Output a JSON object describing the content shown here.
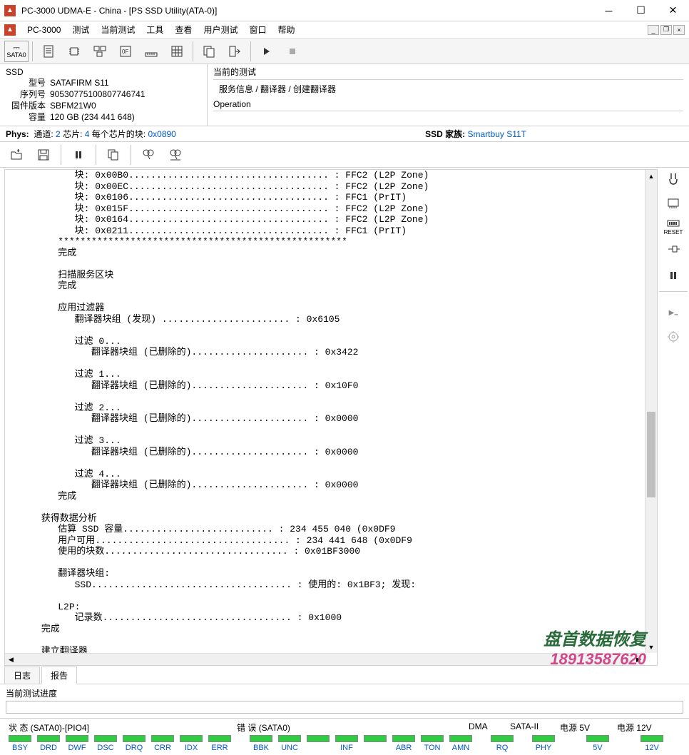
{
  "window": {
    "title": "PC-3000 UDMA-E - China - [PS SSD Utility(ATA-0)]"
  },
  "menu": {
    "items": [
      "PC-3000",
      "测试",
      "当前测试",
      "工具",
      "查看",
      "用户测试",
      "窗口",
      "帮助"
    ]
  },
  "sata_label": "SATA0",
  "ssd_panel": {
    "header": "SSD",
    "rows": [
      {
        "k": "型号",
        "v": "SATAFIRM   S11"
      },
      {
        "k": "序列号",
        "v": "90530775100807746741"
      },
      {
        "k": "固件版本",
        "v": "SBFM21W0"
      },
      {
        "k": "容量",
        "v": "120 GB (234 441 648)"
      }
    ]
  },
  "op_panel": {
    "current_test_label": "当前的测试",
    "crumbs": "服务信息 / 翻译器 / 创建翻译器",
    "operation_label": "Operation"
  },
  "phys": {
    "label": "Phys:",
    "channels_label": "通道:",
    "channels": "2",
    "chips_label": "芯片:",
    "chips": "4",
    "blocks_label": "每个芯片的块:",
    "blocks": "0x0890",
    "ssd_family_label": "SSD 家族:",
    "ssd_family": "Smartbuy S11T"
  },
  "log_text": "            块: 0x00B0.................................... : FFC2 (L2P Zone)\n            块: 0x00EC.................................... : FFC2 (L2P Zone)\n            块: 0x0106.................................... : FFC1 (PrIT)\n            块: 0x015F.................................... : FFC2 (L2P Zone)\n            块: 0x0164.................................... : FFC2 (L2P Zone)\n            块: 0x0211.................................... : FFC1 (PrIT)\n         ****************************************************\n         完成\n\n         扫描服务区块\n         完成\n\n         应用过滤器\n            翻译器块组 (发现) ....................... : 0x6105\n\n            过滤 0...\n               翻译器块组 (已删除的)..................... : 0x3422\n\n            过滤 1...\n               翻译器块组 (已删除的)..................... : 0x10F0\n\n            过滤 2...\n               翻译器块组 (已删除的)..................... : 0x0000\n\n            过滤 3...\n               翻译器块组 (已删除的)..................... : 0x0000\n\n            过滤 4...\n               翻译器块组 (已删除的)..................... : 0x0000\n         完成\n\n      获得数据分析\n         估算 SSD 容量........................... : 234 455 040 (0x0DF9\n         用户可用................................... : 234 441 648 (0x0DF9\n         使用的块数................................. : 0x01BF3000\n\n         翻译器块组:\n            SSD.................................... : 使用的: 0x1BF3; 发现:\n\n         L2P:\n            记录数.................................. : 0x1000\n      完成\n\n      建立翻译器\n      完成\n   ****************************************************\n   完成\n****************************************************\n测试完成",
  "side_tools": {
    "reset_label": "RESET"
  },
  "tabs": {
    "log": "日志",
    "report": "报告"
  },
  "progress": {
    "label": "当前测试进度"
  },
  "status": {
    "group1_label": "状 态 (SATA0)-[PIO4]",
    "group2_label": "错 误 (SATA0)",
    "dma_label": "DMA",
    "sata2_label": "SATA-II",
    "power5_label": "电源 5V",
    "power12_label": "电源 12V",
    "leds1": [
      "BSY",
      "DRD",
      "DWF",
      "DSC",
      "DRQ",
      "CRR",
      "IDX",
      "ERR"
    ],
    "leds2": [
      "BBK",
      "UNC",
      "",
      "INF",
      "",
      "ABR",
      "TON",
      "AMN"
    ],
    "rq": "RQ",
    "phy": "PHY",
    "v5": "5V",
    "v12": "12V"
  },
  "watermark": {
    "line1": "盘首数据恢复",
    "line2": "18913587620"
  },
  "colors": {
    "link_blue": "#0058cc",
    "led_on": "#2ecc40",
    "led_off": "#555555",
    "app_red": "#c8432b"
  }
}
